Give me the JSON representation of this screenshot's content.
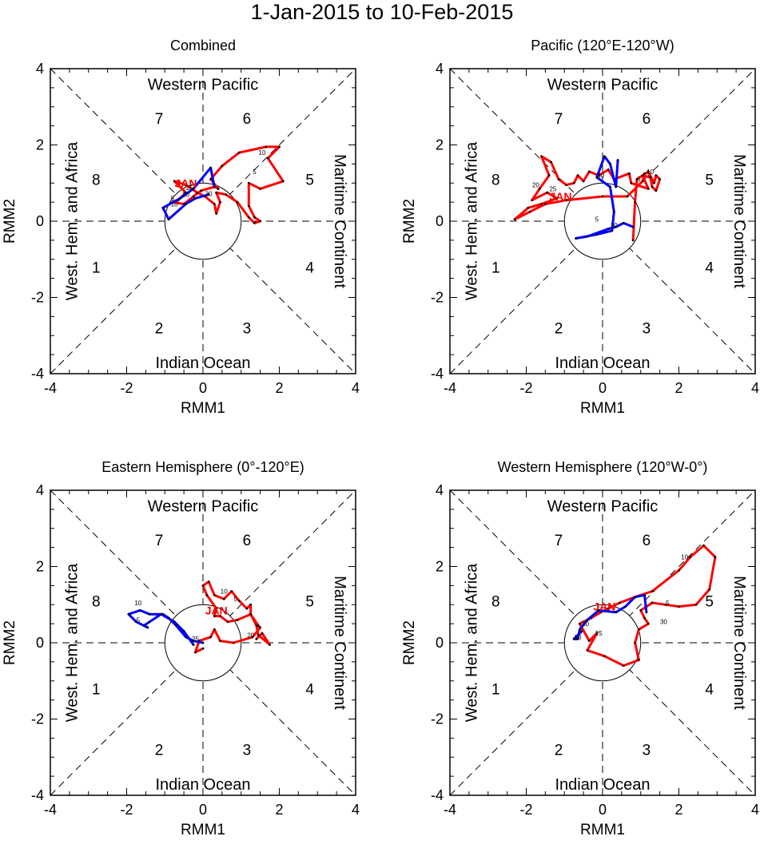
{
  "title": "1-Jan-2015 to 10-Feb-2015",
  "colors": {
    "jan": "#ff0000",
    "feb": "#0000ff",
    "axes": "#000000"
  },
  "common": {
    "xlabel": "RMM1",
    "ylabel": "RMM2",
    "xlim": [
      -4,
      4
    ],
    "ylim": [
      -4,
      4
    ],
    "ticks": [
      -4,
      -2,
      0,
      2,
      4
    ],
    "region_top": "Western Pacific",
    "region_bottom": "Indian Ocean",
    "region_left": "West. Hem. and Africa",
    "region_right": "Maritime Continent",
    "phases": [
      {
        "label": "1",
        "x": -2.8,
        "y": -1.2
      },
      {
        "label": "2",
        "x": -1.15,
        "y": -2.8
      },
      {
        "label": "3",
        "x": 1.15,
        "y": -2.8
      },
      {
        "label": "4",
        "x": 2.8,
        "y": -1.2
      },
      {
        "label": "5",
        "x": 2.8,
        "y": 1.1
      },
      {
        "label": "6",
        "x": 1.15,
        "y": 2.7
      },
      {
        "label": "7",
        "x": -1.15,
        "y": 2.7
      },
      {
        "label": "8",
        "x": -2.8,
        "y": 1.1
      }
    ]
  },
  "chart_data": [
    {
      "type": "line",
      "title": "Combined",
      "jan_label": {
        "text": "JAN",
        "x": -0.45,
        "y": 1.0
      },
      "series": [
        {
          "name": "Jan",
          "color": "#ff0000",
          "points": [
            [
              0.4,
              0.85
            ],
            [
              0.2,
              1.1
            ],
            [
              0.5,
              1.45
            ],
            [
              0.95,
              1.8
            ],
            [
              1.65,
              1.95
            ],
            [
              2.0,
              1.95
            ],
            [
              1.7,
              1.65
            ],
            [
              2.1,
              1.05
            ],
            [
              1.5,
              0.85
            ],
            [
              1.2,
              1.0
            ],
            [
              1.2,
              0.4
            ],
            [
              1.35,
              0.1
            ],
            [
              1.5,
              0.0
            ],
            [
              1.35,
              -0.05
            ],
            [
              1.2,
              0.1
            ],
            [
              0.9,
              0.5
            ],
            [
              0.6,
              0.7
            ],
            [
              0.35,
              0.75
            ],
            [
              0.45,
              0.5
            ],
            [
              0.35,
              0.2
            ],
            [
              0.3,
              0.45
            ],
            [
              0.05,
              0.65
            ],
            [
              -0.15,
              0.75
            ],
            [
              -0.45,
              0.95
            ],
            [
              -0.75,
              1.05
            ],
            [
              -0.45,
              0.75
            ],
            [
              -0.65,
              0.55
            ],
            [
              -0.8,
              0.5
            ],
            [
              -0.5,
              0.45
            ],
            [
              -0.25,
              0.65
            ],
            [
              -0.05,
              0.8
            ],
            [
              0.3,
              0.9
            ],
            [
              0.4,
              0.85
            ]
          ]
        },
        {
          "name": "Feb",
          "color": "#0000ff",
          "points": [
            [
              0.3,
              0.9
            ],
            [
              0.2,
              1.4
            ],
            [
              -0.25,
              0.85
            ],
            [
              -0.6,
              0.6
            ],
            [
              -1.05,
              0.35
            ],
            [
              -0.9,
              0.05
            ],
            [
              -0.45,
              0.45
            ],
            [
              -0.2,
              0.6
            ],
            [
              0.15,
              0.7
            ]
          ]
        }
      ],
      "day_labels": [
        {
          "text": "10",
          "x": 1.55,
          "y": 1.8
        },
        {
          "text": "5",
          "x": 1.35,
          "y": 1.3
        },
        {
          "text": "25",
          "x": -0.35,
          "y": 0.88
        },
        {
          "text": "20",
          "x": -0.45,
          "y": 0.7
        },
        {
          "text": "5",
          "x": -0.8,
          "y": 0.6
        },
        {
          "text": "10",
          "x": -0.75,
          "y": 0.45
        },
        {
          "text": "30",
          "x": 0.15,
          "y": 0.72
        }
      ]
    },
    {
      "type": "line",
      "title": "Pacific (120°E-120°W)",
      "jan_label": {
        "text": "JAN",
        "x": -1.1,
        "y": 0.65
      },
      "series": [
        {
          "name": "Jan",
          "color": "#ff0000",
          "points": [
            [
              0.8,
              -0.5
            ],
            [
              0.85,
              0.5
            ],
            [
              0.9,
              1.1
            ],
            [
              1.2,
              1.3
            ],
            [
              1.35,
              1.0
            ],
            [
              1.4,
              1.2
            ],
            [
              1.5,
              1.1
            ],
            [
              1.4,
              0.8
            ],
            [
              1.3,
              0.9
            ],
            [
              1.25,
              1.15
            ],
            [
              1.05,
              1.2
            ],
            [
              1.2,
              0.85
            ],
            [
              0.75,
              1.0
            ],
            [
              0.7,
              1.25
            ],
            [
              0.3,
              1.1
            ],
            [
              0.15,
              1.35
            ],
            [
              -0.1,
              1.2
            ],
            [
              -0.35,
              1.3
            ],
            [
              -0.5,
              1.05
            ],
            [
              -0.65,
              1.2
            ],
            [
              -0.75,
              1.0
            ],
            [
              -0.95,
              0.95
            ],
            [
              -1.15,
              1.1
            ],
            [
              -1.35,
              1.55
            ],
            [
              -1.6,
              1.7
            ],
            [
              -1.4,
              1.2
            ],
            [
              -1.65,
              0.85
            ],
            [
              -1.85,
              0.55
            ],
            [
              -1.45,
              0.75
            ],
            [
              -1.2,
              0.6
            ],
            [
              -1.6,
              0.45
            ],
            [
              -1.95,
              0.35
            ],
            [
              -2.3,
              0.05
            ],
            [
              -1.9,
              0.25
            ],
            [
              -1.5,
              0.45
            ],
            [
              -0.95,
              0.55
            ],
            [
              0.0,
              0.65
            ],
            [
              0.65,
              0.65
            ],
            [
              1.05,
              1.05
            ],
            [
              1.1,
              1.25
            ]
          ]
        },
        {
          "name": "Feb",
          "color": "#0000ff",
          "points": [
            [
              0.4,
              1.6
            ],
            [
              0.35,
              0.9
            ],
            [
              0.2,
              1.5
            ],
            [
              0.05,
              1.7
            ],
            [
              -0.15,
              1.15
            ],
            [
              0.2,
              0.9
            ],
            [
              0.3,
              0.25
            ],
            [
              0.25,
              -0.25
            ],
            [
              -0.15,
              -0.35
            ],
            [
              -0.7,
              -0.45
            ],
            [
              -0.4,
              -0.4
            ],
            [
              0.15,
              -0.2
            ],
            [
              0.35,
              -0.15
            ],
            [
              0.55,
              -0.05
            ],
            [
              0.8,
              -0.15
            ]
          ]
        }
      ],
      "day_labels": [
        {
          "text": "10",
          "x": 1.25,
          "y": 1.3
        },
        {
          "text": "5",
          "x": 0.95,
          "y": 1.1
        },
        {
          "text": "30",
          "x": -0.05,
          "y": 1.2
        },
        {
          "text": "20",
          "x": -1.75,
          "y": 0.95
        },
        {
          "text": "25",
          "x": -1.3,
          "y": 0.85
        },
        {
          "text": "5",
          "x": -0.15,
          "y": 0.05
        },
        {
          "text": "10",
          "x": 0.3,
          "y": -0.1
        }
      ]
    },
    {
      "type": "line",
      "title": "Eastern Hemisphere (0°-120°E)",
      "jan_label": {
        "text": "JAN",
        "x": 0.35,
        "y": 0.85
      },
      "series": [
        {
          "name": "Jan",
          "color": "#ff0000",
          "points": [
            [
              1.4,
              0.1
            ],
            [
              1.55,
              0.25
            ],
            [
              1.75,
              -0.05
            ],
            [
              1.45,
              0.2
            ],
            [
              1.4,
              0.45
            ],
            [
              1.25,
              0.75
            ],
            [
              1.25,
              1.0
            ],
            [
              1.15,
              0.9
            ],
            [
              0.95,
              1.1
            ],
            [
              0.75,
              1.35
            ],
            [
              0.55,
              1.15
            ],
            [
              0.3,
              1.25
            ],
            [
              0.15,
              1.6
            ],
            [
              0.0,
              1.5
            ],
            [
              0.1,
              1.25
            ],
            [
              0.35,
              0.9
            ],
            [
              0.3,
              0.7
            ],
            [
              0.45,
              0.7
            ],
            [
              0.65,
              0.55
            ],
            [
              0.9,
              0.6
            ],
            [
              1.25,
              0.75
            ],
            [
              1.45,
              0.45
            ],
            [
              1.5,
              0.4
            ],
            [
              1.3,
              0.15
            ],
            [
              0.8,
              0.0
            ],
            [
              0.45,
              0.05
            ],
            [
              0.3,
              0.35
            ],
            [
              0.2,
              0.15
            ],
            [
              -0.1,
              0.05
            ],
            [
              -0.2,
              -0.25
            ],
            [
              0.0,
              -0.15
            ]
          ]
        },
        {
          "name": "Feb",
          "color": "#0000ff",
          "points": [
            [
              -0.25,
              -0.05
            ],
            [
              -0.5,
              0.3
            ],
            [
              -0.75,
              0.55
            ],
            [
              -1.1,
              0.75
            ],
            [
              -1.4,
              0.55
            ],
            [
              -1.55,
              0.45
            ],
            [
              -1.45,
              0.4
            ],
            [
              -1.75,
              0.55
            ],
            [
              -1.95,
              0.75
            ],
            [
              -1.65,
              0.85
            ],
            [
              -1.4,
              0.75
            ],
            [
              -1.05,
              0.75
            ],
            [
              -0.9,
              0.65
            ],
            [
              -0.7,
              0.45
            ],
            [
              -0.45,
              0.15
            ],
            [
              -0.25,
              0.05
            ],
            [
              0.0,
              0.0
            ]
          ]
        }
      ],
      "day_labels": [
        {
          "text": "10",
          "x": 0.55,
          "y": 1.35
        },
        {
          "text": "5",
          "x": 0.85,
          "y": 1.15
        },
        {
          "text": "20",
          "x": 1.25,
          "y": 0.2
        },
        {
          "text": "25",
          "x": -0.2,
          "y": 0.1
        },
        {
          "text": "10",
          "x": -1.7,
          "y": 1.05
        },
        {
          "text": "5",
          "x": -1.7,
          "y": 0.6
        }
      ]
    },
    {
      "type": "line",
      "title": "Western Hemisphere (120°W-0°)",
      "jan_label": {
        "text": "JAN",
        "x": 0.05,
        "y": 0.95
      },
      "series": [
        {
          "name": "Jan",
          "color": "#ff0000",
          "points": [
            [
              0.15,
              0.9
            ],
            [
              0.45,
              1.05
            ],
            [
              0.85,
              1.2
            ],
            [
              1.3,
              1.35
            ],
            [
              2.0,
              1.9
            ],
            [
              2.3,
              2.25
            ],
            [
              2.65,
              2.55
            ],
            [
              2.95,
              2.25
            ],
            [
              2.8,
              1.4
            ],
            [
              2.45,
              1.0
            ],
            [
              2.0,
              0.95
            ],
            [
              1.65,
              1.0
            ],
            [
              1.3,
              1.05
            ],
            [
              1.0,
              0.85
            ],
            [
              1.1,
              0.65
            ],
            [
              1.2,
              0.5
            ],
            [
              0.95,
              0.35
            ],
            [
              0.85,
              0.0
            ],
            [
              0.95,
              -0.45
            ],
            [
              0.55,
              -0.6
            ],
            [
              0.05,
              -0.35
            ],
            [
              -0.4,
              -0.2
            ],
            [
              -0.15,
              0.25
            ],
            [
              -0.35,
              0.05
            ],
            [
              -0.6,
              0.5
            ],
            [
              -0.3,
              0.65
            ],
            [
              -0.05,
              0.8
            ],
            [
              0.15,
              0.9
            ]
          ]
        },
        {
          "name": "Feb",
          "color": "#0000ff",
          "points": [
            [
              1.15,
              0.8
            ],
            [
              1.1,
              1.25
            ],
            [
              0.85,
              1.2
            ],
            [
              0.6,
              0.95
            ],
            [
              0.35,
              0.8
            ],
            [
              -0.1,
              0.85
            ],
            [
              -0.4,
              0.6
            ],
            [
              -0.6,
              0.35
            ],
            [
              -0.65,
              0.1
            ],
            [
              -0.75,
              0.1
            ],
            [
              -0.55,
              0.3
            ]
          ]
        }
      ],
      "day_labels": [
        {
          "text": "10",
          "x": 2.15,
          "y": 2.25
        },
        {
          "text": "5",
          "x": 1.7,
          "y": 1.05
        },
        {
          "text": "30",
          "x": 1.6,
          "y": 0.55
        },
        {
          "text": "20",
          "x": -0.45,
          "y": 0.5
        },
        {
          "text": "10",
          "x": -0.65,
          "y": 0.15
        },
        {
          "text": "25",
          "x": -0.1,
          "y": 0.25
        }
      ]
    }
  ]
}
